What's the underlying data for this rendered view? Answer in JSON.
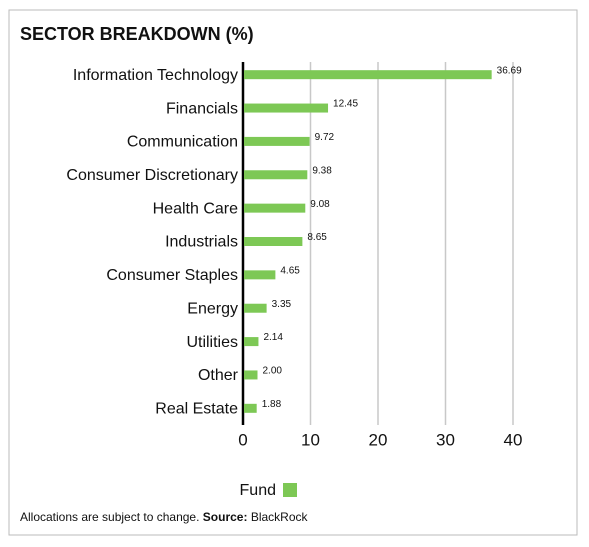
{
  "chart_data": {
    "type": "barh",
    "title": "SECTOR BREAKDOWN (%)",
    "categories": [
      "Information Technology",
      "Financials",
      "Communication",
      "Consumer Discretionary",
      "Health Care",
      "Industrials",
      "Consumer Staples",
      "Energy",
      "Utilities",
      "Other",
      "Real Estate"
    ],
    "series": [
      {
        "name": "Fund",
        "color": "#7dc855",
        "values": [
          36.69,
          12.45,
          9.72,
          9.38,
          9.08,
          8.65,
          4.65,
          3.35,
          2.14,
          2.0,
          1.88
        ],
        "value_labels": [
          "36.69",
          "12.45",
          "9.72",
          "9.38",
          "9.08",
          "8.65",
          "4.65",
          "3.35",
          "2.14",
          "2.00",
          "1.88"
        ]
      }
    ],
    "xlim": [
      0,
      40
    ],
    "xticks": [
      0,
      10,
      20,
      30,
      40
    ],
    "grid": true,
    "note": "Allocations are subject to change.",
    "source_label": "Source:",
    "source": "BlackRock"
  }
}
